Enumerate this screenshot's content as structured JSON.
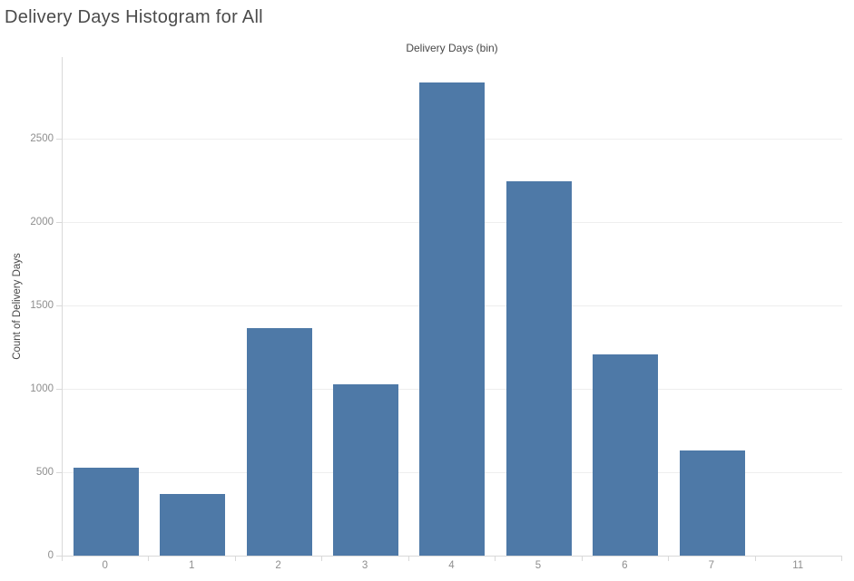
{
  "page": {
    "title": "Delivery Days Histogram for All"
  },
  "chart": {
    "x_axis_title": "Delivery Days (bin)",
    "y_axis_title": "Count of Delivery Days",
    "colors": {
      "bar": "#4e79a7",
      "gridline": "#eeeeee",
      "axis_line": "#d9d9d9",
      "tick_label": "#8e8e8e",
      "axis_title": "#484848",
      "title": "#4b4b4b",
      "background": "#ffffff"
    }
  },
  "chart_data": {
    "type": "bar",
    "title": "Delivery Days Histogram for All",
    "xlabel": "Delivery Days (bin)",
    "ylabel": "Count of Delivery Days",
    "categories": [
      "0",
      "1",
      "2",
      "3",
      "4",
      "5",
      "6",
      "7",
      "11"
    ],
    "values": [
      525,
      370,
      1365,
      1025,
      2840,
      2245,
      1205,
      630,
      0
    ],
    "y_ticks": [
      0,
      500,
      1000,
      1500,
      2000,
      2500
    ],
    "ylim": [
      0,
      2990
    ],
    "grid": "horizontal",
    "legend": "none",
    "bar_color": "#4e79a7"
  }
}
